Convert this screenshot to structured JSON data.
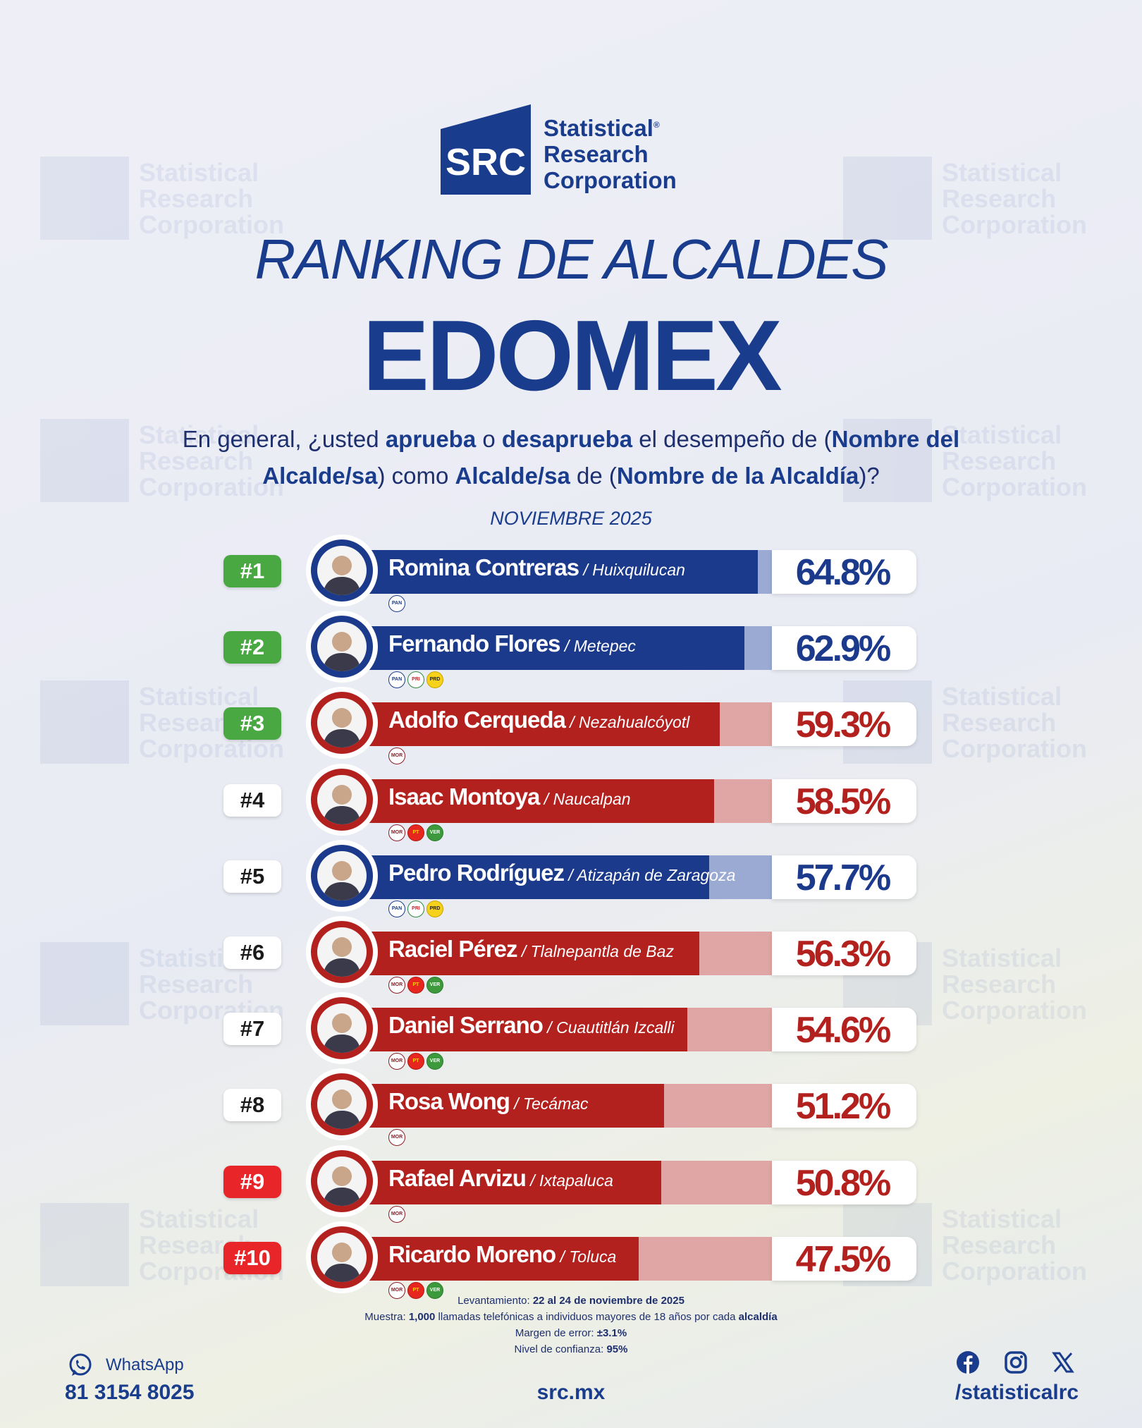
{
  "brand": {
    "mark": "SRC",
    "lines": [
      "Statistical",
      "Research",
      "Corporation"
    ],
    "registered": "®"
  },
  "title": "RANKING DE ALCALDES",
  "subtitle": "EDOMEX",
  "question": {
    "p1": "En general, ¿usted ",
    "b1": "aprueba",
    "p2": " o ",
    "b2": "desaprueba",
    "p3": " el desempeño de (",
    "b3": "Nombre del Alcalde/sa",
    "p4": ") como ",
    "b4": "Alcalde/sa",
    "p5": " de (",
    "b5": "Nombre de la Alcaldía",
    "p6": ")?"
  },
  "date": "NOVIEMBRE 2025",
  "colors": {
    "blue": "#1c3a8c",
    "blue_light": "#9aaad2",
    "red": "#b3211f",
    "red_light": "#e0a5a5",
    "green_rank": "#4aa843",
    "red_rank": "#e8262a"
  },
  "chart_data": {
    "type": "bar",
    "title": "RANKING DE ALCALDES EDOMEX",
    "unit": "%",
    "ylim": [
      0,
      100
    ],
    "categories": [
      "Romina Contreras",
      "Fernando Flores",
      "Adolfo Cerqueda",
      "Isaac Montoya",
      "Pedro Rodríguez",
      "Raciel Pérez",
      "Daniel Serrano",
      "Rosa Wong",
      "Rafael Arvizu",
      "Ricardo Moreno"
    ],
    "values": [
      64.8,
      62.9,
      59.3,
      58.5,
      57.7,
      56.3,
      54.6,
      51.2,
      50.8,
      47.5
    ],
    "rows": [
      {
        "rank": "#1",
        "rank_style": "green",
        "name": "Romina Contreras",
        "alcaldia": " / Huixquilucan",
        "value": 64.8,
        "label": "64.8%",
        "color": "blue",
        "parties": [
          "PAN"
        ]
      },
      {
        "rank": "#2",
        "rank_style": "green",
        "name": "Fernando Flores",
        "alcaldia": " / Metepec",
        "value": 62.9,
        "label": "62.9%",
        "color": "blue",
        "parties": [
          "PAN",
          "PRI",
          "PRD"
        ]
      },
      {
        "rank": "#3",
        "rank_style": "green",
        "name": "Adolfo Cerqueda",
        "alcaldia": " / Nezahualcóyotl",
        "value": 59.3,
        "label": "59.3%",
        "color": "red",
        "parties": [
          "MORENA"
        ]
      },
      {
        "rank": "#4",
        "rank_style": "white",
        "name": "Isaac Montoya",
        "alcaldia": " / Naucalpan",
        "value": 58.5,
        "label": "58.5%",
        "color": "red",
        "parties": [
          "MORENA",
          "PT",
          "VERDE"
        ]
      },
      {
        "rank": "#5",
        "rank_style": "white",
        "name": "Pedro Rodríguez",
        "alcaldia": " / Atizapán de Zaragoza",
        "value": 57.7,
        "label": "57.7%",
        "color": "blue",
        "parties": [
          "PAN",
          "PRI",
          "PRD"
        ]
      },
      {
        "rank": "#6",
        "rank_style": "white",
        "name": "Raciel Pérez",
        "alcaldia": " / Tlalnepantla de Baz",
        "value": 56.3,
        "label": "56.3%",
        "color": "red",
        "parties": [
          "MORENA",
          "PT",
          "VERDE"
        ]
      },
      {
        "rank": "#7",
        "rank_style": "white",
        "name": "Daniel Serrano",
        "alcaldia": " / Cuautitlán Izcalli",
        "value": 54.6,
        "label": "54.6%",
        "color": "red",
        "parties": [
          "MORENA",
          "PT",
          "VERDE"
        ]
      },
      {
        "rank": "#8",
        "rank_style": "white",
        "name": "Rosa Wong",
        "alcaldia": " / Tecámac",
        "value": 51.2,
        "label": "51.2%",
        "color": "red",
        "parties": [
          "MORENA"
        ]
      },
      {
        "rank": "#9",
        "rank_style": "red",
        "name": "Rafael Arvizu",
        "alcaldia": " / Ixtapaluca",
        "value": 50.8,
        "label": "50.8%",
        "color": "red",
        "parties": [
          "MORENA"
        ]
      },
      {
        "rank": "#10",
        "rank_style": "red",
        "name": "Ricardo Moreno",
        "alcaldia": " / Toluca",
        "value": 47.5,
        "label": "47.5%",
        "color": "red",
        "parties": [
          "MORENA",
          "PT",
          "VERDE"
        ]
      }
    ]
  },
  "notes": {
    "l1_label": "Levantamiento:",
    "l1_value": "22 al 24 de noviembre de 2025",
    "l2_label": "Muestra:",
    "l2_value": "1,000",
    "l2_rest": "llamadas telefónicas a individuos mayores de 18 años por cada",
    "l2_end": "alcaldía",
    "l3_label": "Margen de error:",
    "l3_value": "±3.1%",
    "l4_label": "Nivel de confianza:",
    "l4_value": "95%"
  },
  "footer": {
    "whatsapp_label": "WhatsApp",
    "phone": "81 3154 8025",
    "site": "src.mx",
    "handle": "/statisticalrc",
    "icons": [
      "whatsapp-icon",
      "facebook-icon",
      "instagram-icon",
      "x-icon"
    ]
  }
}
